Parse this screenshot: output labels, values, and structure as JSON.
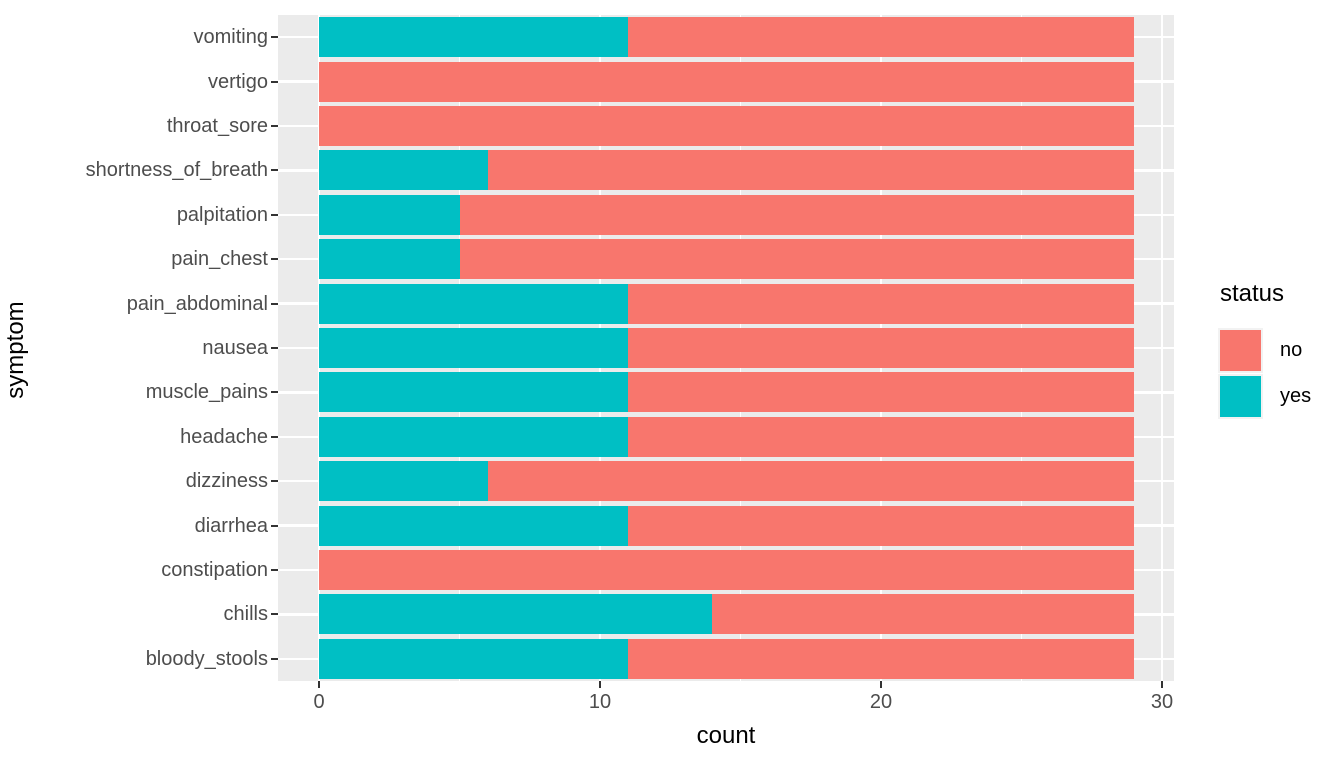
{
  "chart_data": {
    "type": "bar",
    "orientation": "horizontal",
    "stacked": true,
    "xlabel": "count",
    "ylabel": "symptom",
    "categories": [
      "vomiting",
      "vertigo",
      "throat_sore",
      "shortness_of_breath",
      "palpitation",
      "pain_chest",
      "pain_abdominal",
      "nausea",
      "muscle_pains",
      "headache",
      "dizziness",
      "diarrhea",
      "constipation",
      "chills",
      "bloody_stools"
    ],
    "series": [
      {
        "name": "yes",
        "color": "#00BFC4",
        "values": [
          11,
          0,
          0,
          6,
          5,
          5,
          11,
          11,
          11,
          11,
          6,
          11,
          0,
          14,
          11
        ]
      },
      {
        "name": "no",
        "color": "#F8766D",
        "values": [
          18,
          29,
          29,
          23,
          24,
          24,
          18,
          18,
          18,
          18,
          23,
          18,
          29,
          15,
          18
        ]
      }
    ],
    "bar_total": 29,
    "x_ticks": [
      0,
      10,
      20,
      30
    ],
    "x_minor_ticks": [
      5,
      15,
      25
    ],
    "xlim": [
      0,
      30
    ],
    "grid": true,
    "legend": {
      "title": "status",
      "position": "right",
      "entries": [
        {
          "label": "no",
          "color": "#F8766D"
        },
        {
          "label": "yes",
          "color": "#00BFC4"
        }
      ]
    }
  },
  "colors": {
    "panel_bg": "#EBEBEB",
    "grid": "#FFFFFF",
    "axis_text": "#4D4D4D",
    "title_text": "#000000",
    "tick_mark": "#333333",
    "legend_key_bg": "#F2F2F2",
    "background": "#FFFFFF"
  }
}
